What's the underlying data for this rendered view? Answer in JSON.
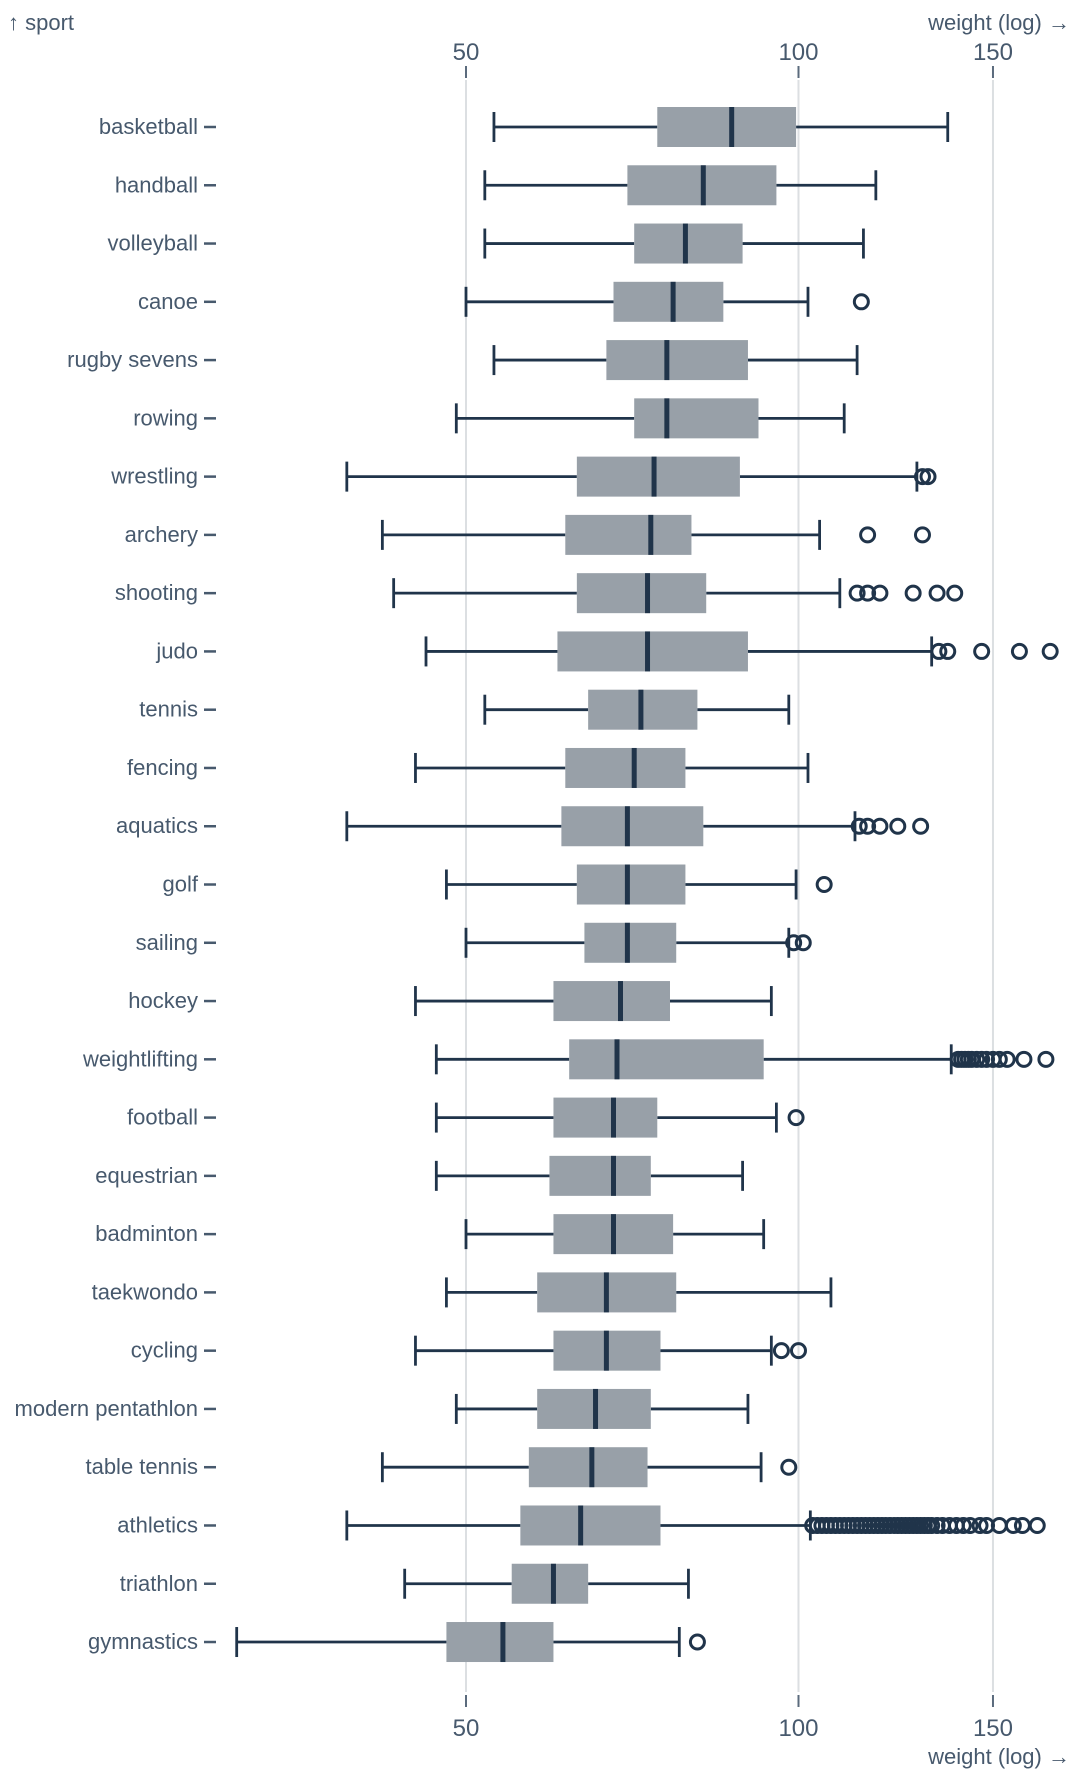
{
  "labels": {
    "y_axis_title": "↑ sport",
    "x_axis_title_top": "weight (log) →",
    "x_axis_title_bottom": "weight (log) →"
  },
  "colors": {
    "background": "#ffffff",
    "box_fill": "#98a0a8",
    "line": "#20344a",
    "text": "#47596d",
    "tick": "#5b6b7d",
    "grid": "#dcdfe2"
  },
  "chart_data": {
    "type": "boxplot-horizontal",
    "title": "",
    "x_axis": {
      "label": "weight (log) →",
      "scale": "log",
      "ticks": [
        50,
        100,
        150
      ],
      "domain_approx": [
        30,
        175
      ]
    },
    "y_axis": {
      "label": "↑ sport",
      "categories_note": "sorted by median weight descending"
    },
    "grid": true,
    "series": [
      {
        "sport": "basketball",
        "min": 53,
        "q1": 74.5,
        "median": 87,
        "q3": 99.5,
        "max": 136.5,
        "outliers": []
      },
      {
        "sport": "handball",
        "min": 52,
        "q1": 70,
        "median": 82,
        "q3": 95.5,
        "max": 117.5,
        "outliers": []
      },
      {
        "sport": "volleyball",
        "min": 52,
        "q1": 71,
        "median": 79,
        "q3": 89,
        "max": 114.5,
        "outliers": []
      },
      {
        "sport": "canoe",
        "min": 50,
        "q1": 68,
        "median": 77,
        "q3": 85.5,
        "max": 102,
        "outliers": [
          114
        ]
      },
      {
        "sport": "rugby sevens",
        "min": 53,
        "q1": 67,
        "median": 76,
        "q3": 90,
        "max": 113,
        "outliers": []
      },
      {
        "sport": "rowing",
        "min": 49,
        "q1": 71,
        "median": 76,
        "q3": 92,
        "max": 110,
        "outliers": []
      },
      {
        "sport": "wrestling",
        "min": 39,
        "q1": 63,
        "median": 74,
        "q3": 88.5,
        "max": 128,
        "outliers": [
          129.5,
          131
        ]
      },
      {
        "sport": "archery",
        "min": 42,
        "q1": 61.5,
        "median": 73.5,
        "q3": 80,
        "max": 104.5,
        "outliers": [
          115.5,
          129.5
        ]
      },
      {
        "sport": "shooting",
        "min": 43,
        "q1": 63,
        "median": 73,
        "q3": 82.5,
        "max": 109,
        "outliers": [
          113,
          115.5,
          118.5,
          127,
          133.5,
          138.5
        ]
      },
      {
        "sport": "judo",
        "min": 46,
        "q1": 60.5,
        "median": 73,
        "q3": 90,
        "max": 132,
        "outliers": [
          134,
          136.5,
          146.5,
          158.5,
          169
        ]
      },
      {
        "sport": "tennis",
        "min": 52,
        "q1": 64.5,
        "median": 72,
        "q3": 81,
        "max": 98,
        "outliers": []
      },
      {
        "sport": "fencing",
        "min": 45,
        "q1": 61.5,
        "median": 71,
        "q3": 79,
        "max": 102,
        "outliers": []
      },
      {
        "sport": "aquatics",
        "min": 39,
        "q1": 61,
        "median": 70,
        "q3": 82,
        "max": 112.5,
        "outliers": [
          113.5,
          115.5,
          118.5,
          123,
          129
        ]
      },
      {
        "sport": "golf",
        "min": 48,
        "q1": 63,
        "median": 70,
        "q3": 79,
        "max": 99.5,
        "outliers": [
          105.5
        ]
      },
      {
        "sport": "sailing",
        "min": 50,
        "q1": 64,
        "median": 70,
        "q3": 77.5,
        "max": 98,
        "outliers": [
          99,
          101
        ]
      },
      {
        "sport": "hockey",
        "min": 45,
        "q1": 60,
        "median": 69,
        "q3": 76.5,
        "max": 94.5,
        "outliers": []
      },
      {
        "sport": "weightlifting",
        "min": 47,
        "q1": 62,
        "median": 68.5,
        "q3": 93,
        "max": 137.5,
        "outliers": [
          139.5,
          140.5,
          141.5,
          142.5,
          143.5,
          145,
          146.5,
          148,
          150,
          152,
          154.5,
          160,
          167.5
        ]
      },
      {
        "sport": "football",
        "min": 47,
        "q1": 60,
        "median": 68,
        "q3": 74.5,
        "max": 95.5,
        "outliers": [
          99.5
        ]
      },
      {
        "sport": "equestrian",
        "min": 47,
        "q1": 59.5,
        "median": 68,
        "q3": 73.5,
        "max": 89,
        "outliers": []
      },
      {
        "sport": "badminton",
        "min": 50,
        "q1": 60,
        "median": 68,
        "q3": 77,
        "max": 93,
        "outliers": []
      },
      {
        "sport": "taekwondo",
        "min": 48,
        "q1": 58,
        "median": 67,
        "q3": 77.5,
        "max": 107,
        "outliers": []
      },
      {
        "sport": "cycling",
        "min": 45,
        "q1": 60,
        "median": 67,
        "q3": 75,
        "max": 94.5,
        "outliers": [
          96.5,
          100
        ]
      },
      {
        "sport": "modern pentathlon",
        "min": 49,
        "q1": 58,
        "median": 65.5,
        "q3": 73.5,
        "max": 90,
        "outliers": []
      },
      {
        "sport": "table tennis",
        "min": 42,
        "q1": 57,
        "median": 65,
        "q3": 73,
        "max": 92.5,
        "outliers": [
          98
        ]
      },
      {
        "sport": "athletics",
        "min": 39,
        "q1": 56,
        "median": 63.5,
        "q3": 75,
        "max": 102.5,
        "outliers": [
          103,
          104,
          105,
          106,
          107,
          108,
          109,
          110,
          111,
          112,
          113,
          114,
          115,
          116,
          117,
          118,
          119,
          120,
          121,
          122,
          123,
          124,
          125,
          126,
          127,
          128,
          129,
          130,
          131,
          132,
          133.5,
          135,
          137,
          139,
          141,
          143,
          146,
          148,
          152,
          156.5,
          159.5,
          164.5
        ]
      },
      {
        "sport": "triathlon",
        "min": 44,
        "q1": 55,
        "median": 60,
        "q3": 64.5,
        "max": 79.5,
        "outliers": []
      },
      {
        "sport": "gymnastics",
        "min": 31,
        "q1": 48,
        "median": 54,
        "q3": 60,
        "max": 78,
        "outliers": [
          81
        ]
      }
    ]
  }
}
